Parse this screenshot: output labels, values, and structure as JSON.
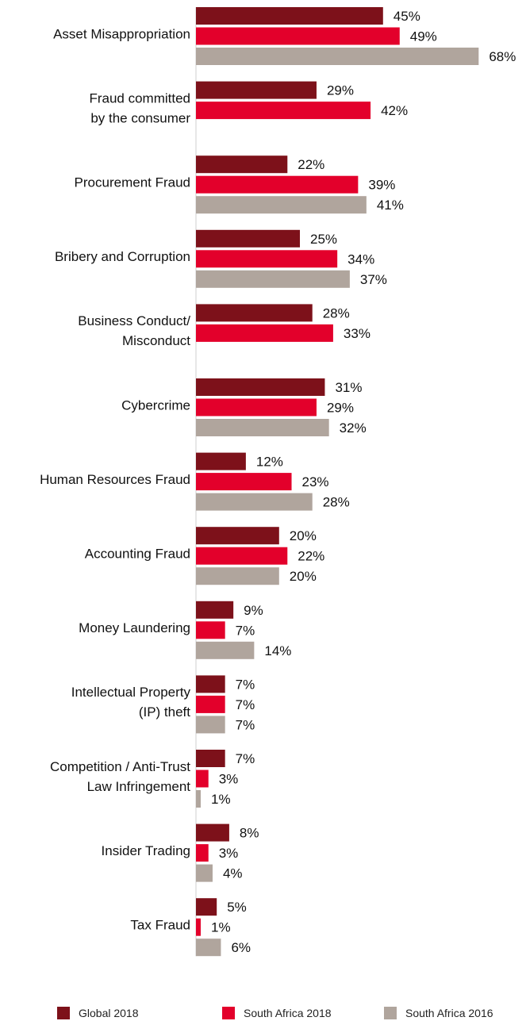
{
  "chart_data": {
    "type": "bar",
    "orientation": "horizontal",
    "categories": [
      [
        "Asset Misappropriation"
      ],
      [
        "Fraud committed",
        "by the consumer"
      ],
      [
        "Procurement Fraud"
      ],
      [
        "Bribery and Corruption"
      ],
      [
        "Business Conduct/",
        "Misconduct"
      ],
      [
        "Cybercrime"
      ],
      [
        "Human Resources Fraud"
      ],
      [
        "Accounting Fraud"
      ],
      [
        "Money Laundering"
      ],
      [
        "Intellectual Property",
        "(IP) theft"
      ],
      [
        "Competition / Anti-Trust",
        "Law Infringement"
      ],
      [
        "Insider Trading"
      ],
      [
        "Tax Fraud"
      ]
    ],
    "series": [
      {
        "name": "Global 2018",
        "color": "#7d111a",
        "values": [
          45,
          29,
          22,
          25,
          28,
          31,
          12,
          20,
          9,
          7,
          7,
          8,
          5
        ],
        "labels": [
          "45%",
          "29%",
          "22%",
          "25%",
          "28%",
          "31%",
          "12%",
          "20%",
          "9%",
          "7%",
          "7%",
          "8%",
          "5%"
        ]
      },
      {
        "name": "South Africa 2018",
        "color": "#e3002b",
        "values": [
          49,
          42,
          39,
          34,
          33,
          29,
          23,
          22,
          7,
          7,
          3,
          3,
          1
        ],
        "labels": [
          "49%",
          "42%",
          "39%",
          "34%",
          "33%",
          "29%",
          "23%",
          "22%",
          "7%",
          "7%",
          "3%",
          "3%",
          "1%"
        ]
      },
      {
        "name": "South Africa 2016",
        "color": "#b0a59d",
        "values": [
          68,
          null,
          41,
          37,
          null,
          32,
          28,
          20,
          14,
          7,
          1,
          4,
          6
        ],
        "labels": [
          "68%",
          null,
          "41%",
          "37%",
          null,
          "32%",
          "28%",
          "20%",
          "14%",
          "7%",
          "1%",
          "4%",
          "6%"
        ]
      }
    ],
    "unit": "%",
    "legend_position": "bottom",
    "grid": false
  }
}
